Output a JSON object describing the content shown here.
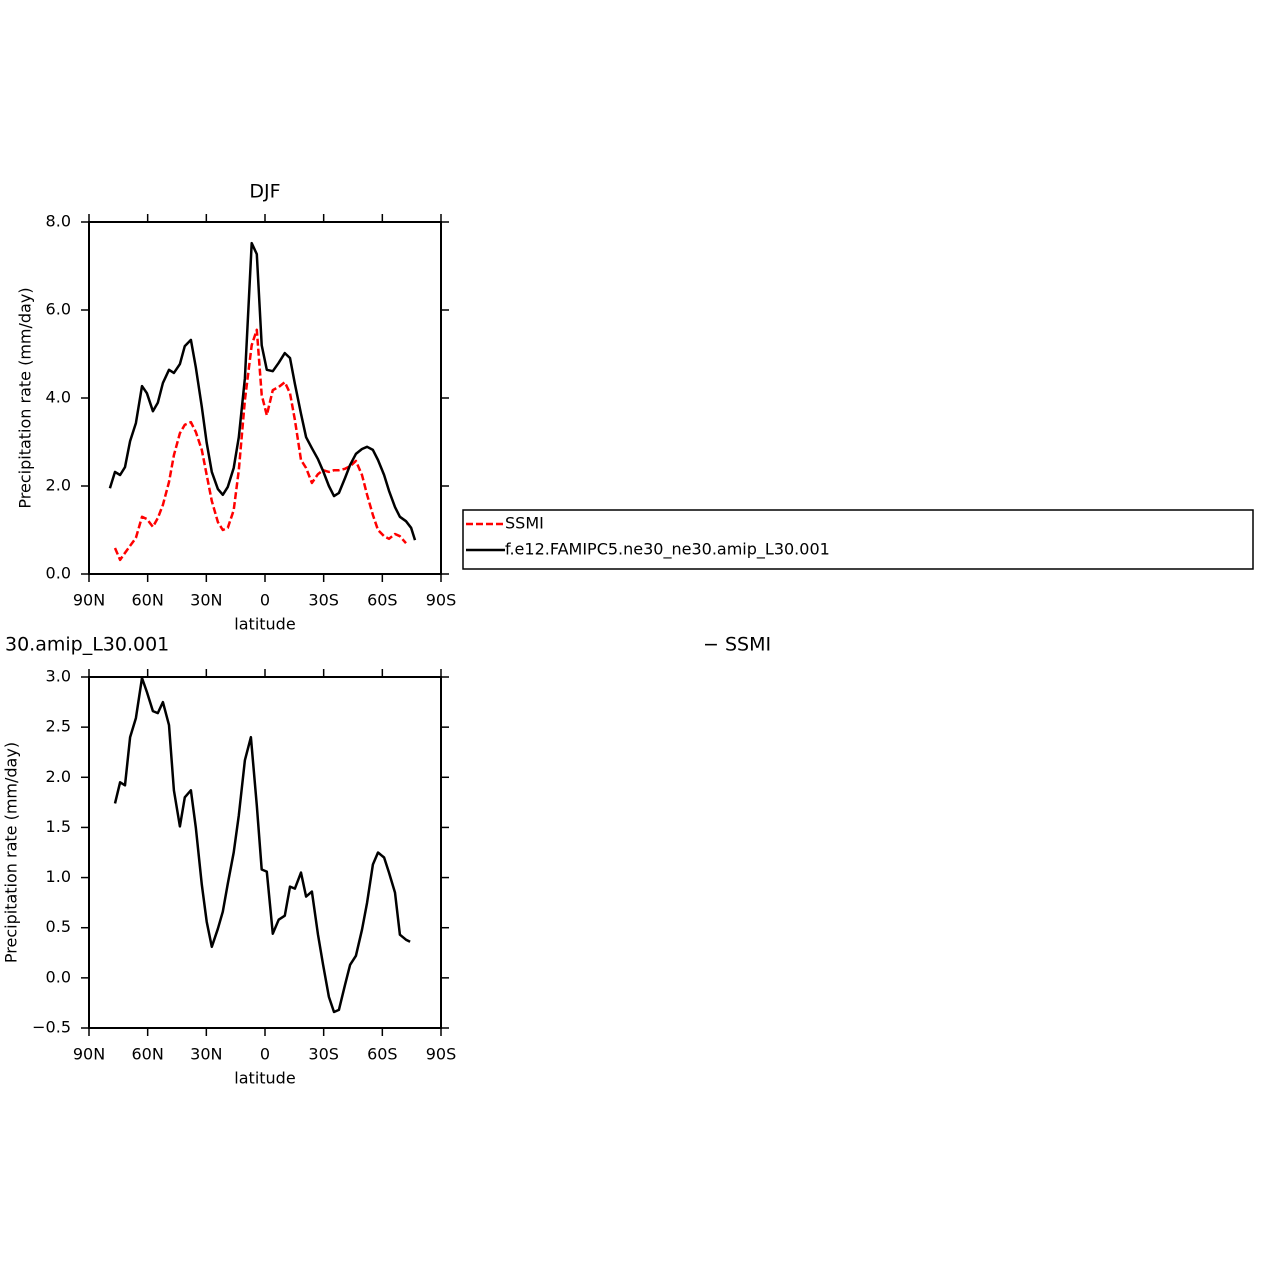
{
  "chart_data": [
    {
      "type": "line",
      "title": "DJF",
      "xlabel": "latitude",
      "ylabel": "Precipitation rate (mm/day)",
      "x": [
        79.3,
        76.7,
        74.1,
        71.6,
        69.0,
        66.0,
        62.9,
        60.4,
        57.3,
        54.8,
        52.2,
        49.1,
        46.6,
        43.5,
        41.0,
        37.9,
        35.4,
        32.3,
        29.8,
        27.2,
        24.1,
        21.6,
        19.0,
        16.0,
        13.4,
        10.3,
        6.8,
        4.2,
        1.7,
        -0.9,
        -4.0,
        -7.0,
        -10.1,
        -12.8,
        -15.3,
        -18.4,
        -21.0,
        -24.0,
        -27.1,
        -29.7,
        -32.7,
        -35.3,
        -37.8,
        -40.9,
        -43.5,
        -46.5,
        -49.6,
        -52.2,
        -55.2,
        -57.8,
        -60.9,
        -63.4,
        -66.5,
        -69.0,
        -72.1,
        -74.7,
        -76.7
      ],
      "series": [
        {
          "name": "SSMI",
          "color": "#ff0000",
          "dashed": true,
          "values": [
            null,
            0.59,
            0.32,
            0.48,
            0.64,
            0.82,
            1.3,
            1.25,
            1.07,
            1.27,
            1.57,
            2.09,
            2.7,
            3.2,
            3.39,
            3.45,
            3.23,
            2.82,
            2.25,
            1.66,
            1.18,
            1.0,
            1.05,
            1.45,
            2.36,
            3.95,
            5.2,
            5.55,
            4.07,
            3.61,
            4.18,
            4.25,
            4.36,
            4.11,
            3.5,
            2.59,
            2.41,
            2.07,
            2.27,
            2.36,
            2.32,
            2.36,
            2.36,
            2.39,
            2.45,
            2.57,
            2.25,
            1.8,
            1.34,
            1.0,
            0.86,
            0.8,
            0.91,
            0.86,
            0.7,
            null,
            null
          ]
        },
        {
          "name": "f.e12.FAMIPC5.ne30_ne30.amip_L30.001",
          "color": "#000000",
          "dashed": false,
          "values": [
            1.95,
            2.32,
            2.25,
            2.43,
            3.02,
            3.43,
            4.27,
            4.11,
            3.7,
            3.89,
            4.34,
            4.64,
            4.57,
            4.77,
            5.18,
            5.32,
            4.7,
            3.8,
            2.98,
            2.32,
            1.93,
            1.8,
            1.98,
            2.41,
            3.11,
            4.45,
            7.52,
            7.27,
            5.2,
            4.64,
            4.61,
            4.8,
            5.02,
            4.91,
            4.32,
            3.64,
            3.11,
            2.86,
            2.61,
            2.34,
            2.0,
            1.77,
            1.84,
            2.18,
            2.48,
            2.73,
            2.84,
            2.89,
            2.82,
            2.59,
            2.25,
            1.89,
            1.52,
            1.3,
            1.2,
            1.05,
            0.77
          ]
        }
      ],
      "xlim": [
        90,
        -90
      ],
      "xticks": [
        {
          "value": 90,
          "label": "90N"
        },
        {
          "value": 60,
          "label": "60N"
        },
        {
          "value": 30,
          "label": "30N"
        },
        0,
        {
          "value": -30,
          "label": "30S"
        },
        {
          "value": -60,
          "label": "60S"
        },
        {
          "value": -90,
          "label": "90S"
        }
      ],
      "ylim": [
        0,
        8
      ],
      "yticks": [
        {
          "value": 0,
          "label": "0.0"
        },
        {
          "value": 2,
          "label": "2.0"
        },
        {
          "value": 4,
          "label": "4.0"
        },
        {
          "value": 6,
          "label": "6.0"
        },
        {
          "value": 8,
          "label": "8.0"
        }
      ],
      "legend": "right"
    },
    {
      "type": "line",
      "title_parts": [
        "30.amip_L30.001",
        "− SSMI"
      ],
      "xlabel": "latitude",
      "ylabel": "Precipitation rate (mm/day)",
      "x": [
        76.7,
        74.1,
        71.6,
        69.0,
        66.0,
        62.9,
        60.4,
        57.3,
        54.8,
        52.2,
        49.1,
        46.6,
        43.5,
        41.0,
        37.9,
        35.4,
        32.3,
        29.8,
        27.2,
        24.1,
        21.6,
        19.0,
        16.0,
        13.4,
        10.3,
        7.2,
        4.2,
        1.7,
        -0.9,
        -4.0,
        -7.0,
        -10.1,
        -12.8,
        -15.3,
        -18.4,
        -21.0,
        -24.0,
        -27.1,
        -29.7,
        -32.7,
        -35.3,
        -37.8,
        -40.9,
        -43.5,
        -46.5,
        -49.6,
        -52.2,
        -55.2,
        -57.8,
        -60.9,
        -63.4,
        -66.5,
        -69.0,
        -72.1,
        -74.2
      ],
      "series": [
        {
          "color": "#000000",
          "dashed": false,
          "values": [
            1.74,
            1.95,
            1.92,
            2.4,
            2.59,
            2.99,
            2.85,
            2.66,
            2.64,
            2.75,
            2.52,
            1.87,
            1.51,
            1.8,
            1.87,
            1.5,
            0.93,
            0.56,
            0.31,
            0.49,
            0.66,
            0.94,
            1.25,
            1.62,
            2.17,
            2.4,
            1.72,
            1.08,
            1.06,
            0.44,
            0.58,
            0.62,
            0.91,
            0.89,
            1.05,
            0.81,
            0.86,
            0.43,
            0.13,
            -0.19,
            -0.34,
            -0.32,
            -0.07,
            0.13,
            0.22,
            0.48,
            0.75,
            1.13,
            1.25,
            1.2,
            1.05,
            0.85,
            0.43,
            0.38,
            0.36
          ]
        }
      ],
      "xlim": [
        90,
        -90
      ],
      "xticks": [
        {
          "value": 90,
          "label": "90N"
        },
        {
          "value": 60,
          "label": "60N"
        },
        {
          "value": 30,
          "label": "30N"
        },
        0,
        {
          "value": -30,
          "label": "30S"
        },
        {
          "value": -60,
          "label": "60S"
        },
        {
          "value": -90,
          "label": "90S"
        }
      ],
      "ylim": [
        -0.5,
        3
      ],
      "yticks": [
        {
          "value": -0.5,
          "label": "−0.5"
        },
        {
          "value": 0,
          "label": "0.0"
        },
        {
          "value": 0.5,
          "label": "0.5"
        },
        {
          "value": 1,
          "label": "1.0"
        },
        {
          "value": 1.5,
          "label": "1.5"
        },
        {
          "value": 2,
          "label": "2.0"
        },
        {
          "value": 2.5,
          "label": "2.5"
        },
        {
          "value": 3,
          "label": "3.0"
        }
      ]
    }
  ]
}
